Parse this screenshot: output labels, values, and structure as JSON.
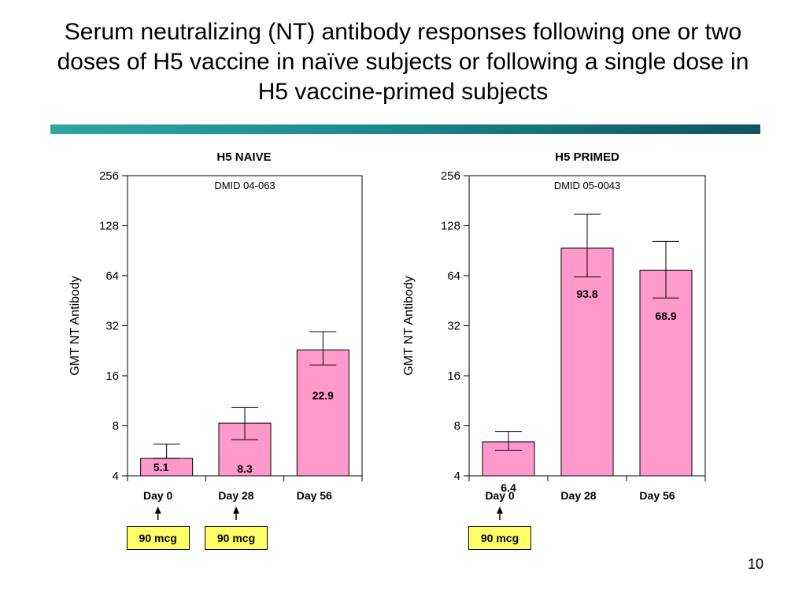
{
  "slide": {
    "title_lines": [
      "Serum neutralizing (NT) antibody responses following one or two",
      "doses of H5 vaccine in naïve subjects or following a single dose in",
      "H5 vaccine-primed subjects"
    ],
    "slide_number": "10"
  },
  "colors": {
    "bar_fill": "#ff99cc",
    "dose_box_fill": "#ffff66",
    "rule_start": "#2fa6a0",
    "rule_end": "#0f5560"
  },
  "chart_data": [
    {
      "type": "bar",
      "title": "H5 NAIVE",
      "annotation": "DMID 04-063",
      "ylabel": "GMT NT Antibody",
      "yscale": "log2",
      "ylim": [
        4,
        256
      ],
      "yticks": [
        "4",
        "8",
        "16",
        "32",
        "64",
        "128",
        "256"
      ],
      "categories": [
        "Day 0",
        "Day 28",
        "Day 56"
      ],
      "values": [
        5.1,
        8.3,
        22.9
      ],
      "value_labels": [
        "5.1",
        "8.3",
        "22.9"
      ],
      "error_low": [
        5.1,
        6.6,
        18.6
      ],
      "error_high": [
        6.2,
        10.3,
        29.5
      ],
      "grid": false,
      "doses": [
        {
          "category_index": 0,
          "label": "90 mcg"
        },
        {
          "category_index": 1,
          "label": "90 mcg"
        }
      ]
    },
    {
      "type": "bar",
      "title": "H5 PRIMED",
      "annotation": "DMID 05-0043",
      "ylabel": "GMT NT Antibody",
      "yscale": "log2",
      "ylim": [
        4,
        256
      ],
      "yticks": [
        "4",
        "8",
        "16",
        "32",
        "64",
        "128",
        "256"
      ],
      "categories": [
        "Day 0",
        "Day 28",
        "Day 56"
      ],
      "values": [
        6.4,
        93.8,
        68.9
      ],
      "value_labels": [
        "6.4",
        "93.8",
        "68.9"
      ],
      "error_low": [
        5.7,
        63.0,
        47.0
      ],
      "error_high": [
        7.4,
        150.0,
        103.0
      ],
      "grid": false,
      "doses": [
        {
          "category_index": 0,
          "label": "90 mcg"
        }
      ]
    }
  ]
}
